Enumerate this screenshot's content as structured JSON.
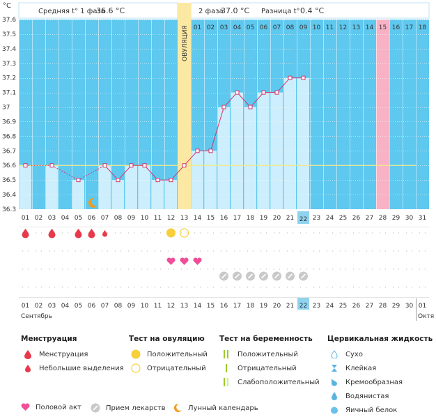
{
  "header": {
    "unit": "°C",
    "phase1_label": "Средняя t° 1 фаза",
    "phase1_value": "36.6 °C",
    "phase2_label": "2 фаза",
    "phase2_value": "37.0 °C",
    "diff_label": "Разница t°",
    "diff_value": "0.4 °C",
    "ovulation_label": "ОВУЛЯЦИЯ"
  },
  "chart_data": {
    "type": "line",
    "ylim": [
      36.3,
      37.6
    ],
    "y_ticks": [
      "37.6",
      "37.5",
      "37.4",
      "37.3",
      "37.2",
      "37.1",
      "37",
      "36.9",
      "36.8",
      "36.7",
      "36.6",
      "36.5",
      "36.4",
      "36.3"
    ],
    "x_day_labels": [
      "01",
      "02",
      "03",
      "04",
      "05",
      "06",
      "07",
      "08",
      "09",
      "10",
      "11",
      "12",
      "13",
      "14",
      "15",
      "16",
      "17",
      "18",
      "19",
      "20",
      "21",
      "22",
      "23",
      "24",
      "25",
      "26",
      "27",
      "28",
      "29",
      "30",
      "31"
    ],
    "cycle_day_labels": [
      "01",
      "02",
      "03",
      "04",
      "05",
      "06",
      "07",
      "08",
      "09",
      "10",
      "11",
      "12",
      "13",
      "14",
      "15",
      "16",
      "17",
      "18"
    ],
    "temperatures": [
      36.6,
      null,
      36.6,
      null,
      36.5,
      null,
      36.6,
      36.5,
      36.6,
      36.6,
      36.5,
      36.5,
      36.6,
      36.7,
      36.7,
      37.0,
      37.1,
      37.0,
      37.1,
      37.1,
      37.2,
      37.2,
      null,
      null,
      null,
      null,
      null,
      null,
      null,
      null,
      null
    ],
    "coverline": 36.6,
    "ovulation_day": 13,
    "today_day": 22,
    "expected_period_day": 28,
    "menstruation": [
      {
        "day": 1,
        "type": "full"
      },
      {
        "day": 3,
        "type": "full"
      },
      {
        "day": 5,
        "type": "full"
      },
      {
        "day": 6,
        "type": "full"
      },
      {
        "day": 7,
        "type": "light"
      }
    ],
    "moon_days": [
      6
    ],
    "ovulation_tests": [
      {
        "day": 12,
        "result": "positive"
      },
      {
        "day": 13,
        "result": "negative"
      }
    ],
    "intercourse_days": [
      12,
      13,
      14
    ],
    "medication_days": [
      16,
      17,
      18,
      19,
      20,
      21,
      22
    ],
    "dates": [
      "01",
      "02",
      "03",
      "04",
      "05",
      "06",
      "07",
      "08",
      "09",
      "10",
      "11",
      "12",
      "13",
      "14",
      "15",
      "16",
      "17",
      "18",
      "19",
      "20",
      "21",
      "22",
      "23",
      "24",
      "25",
      "26",
      "27",
      "28",
      "29",
      "30",
      "01"
    ],
    "red_dates": [
      5,
      6,
      12,
      13,
      19,
      20,
      26,
      27
    ],
    "month_labels": [
      "Сентябрь",
      "Октя"
    ]
  },
  "legend": {
    "menstruation": {
      "title": "Менструация",
      "items": [
        "Менструация",
        "Небольшие выделения"
      ]
    },
    "ovulation_test": {
      "title": "Тест на овуляцию",
      "items": [
        "Положительный",
        "Отрицательный"
      ]
    },
    "pregnancy_test": {
      "title": "Тест на беременность",
      "items": [
        "Положительный",
        "Отрицательный",
        "Слабоположительный"
      ]
    },
    "cervical": {
      "title": "Цервикальная жидкость",
      "items": [
        "Сухо",
        "Клейкая",
        "Кремообразная",
        "Водянистая",
        "Яичный белок"
      ]
    },
    "bottom": [
      "Половой акт",
      "Прием лекарств",
      "Лунный календарь"
    ]
  },
  "colors": {
    "sky": "#5ec8ef",
    "bar": "#cdeefc",
    "line": "#d6336c",
    "ovulation": "#fbe9a3",
    "expected": "#f7b2c6",
    "today": "#8fd3ef",
    "blood": "#e8394b",
    "heart": "#f04e98",
    "pill": "#c9c9c9",
    "sun": "#f6cf3a",
    "moon": "#f29b1d",
    "red_date": "#d80a4a"
  }
}
